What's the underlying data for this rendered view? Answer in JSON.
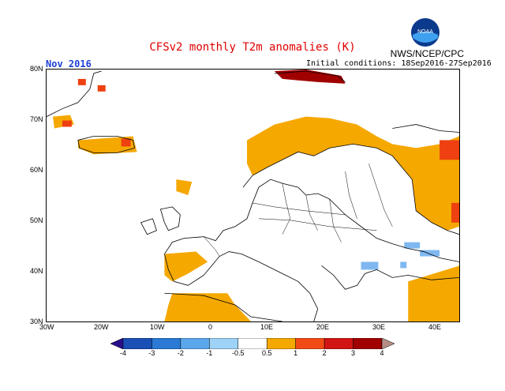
{
  "header": {
    "title": "CFSv2 monthly T2m anomalies (K)",
    "agency": "NWS/NCEP/CPC",
    "month": "Nov 2016",
    "initial_conditions": "Initial conditions: 18Sep2016-27Sep2016",
    "logo_text": "NOAA"
  },
  "axes": {
    "lat_labels": [
      "80N",
      "70N",
      "60N",
      "50N",
      "40N",
      "30N"
    ],
    "lon_labels": [
      "30W",
      "20W",
      "10W",
      "0",
      "10E",
      "20E",
      "30E",
      "40E"
    ]
  },
  "colorbar": {
    "labels": [
      "-4",
      "-3",
      "-2",
      "-1",
      "-0.5",
      "0.5",
      "1",
      "2",
      "3",
      "4"
    ],
    "colors": [
      "#2a0f8c",
      "#1a4fb6",
      "#2a7ad6",
      "#5aa7ec",
      "#9ed2f6",
      "#ffffff",
      "#f5a800",
      "#f24a14",
      "#d21414",
      "#a00000",
      "#b58d85"
    ]
  },
  "map_colors": {
    "ocean": "#ffffff",
    "coast": "#000000",
    "anom_orange": "#f5a800",
    "anom_red": "#ee4010",
    "anom_darkred": "#a00000",
    "anom_lightblue": "#7fb8f0"
  }
}
